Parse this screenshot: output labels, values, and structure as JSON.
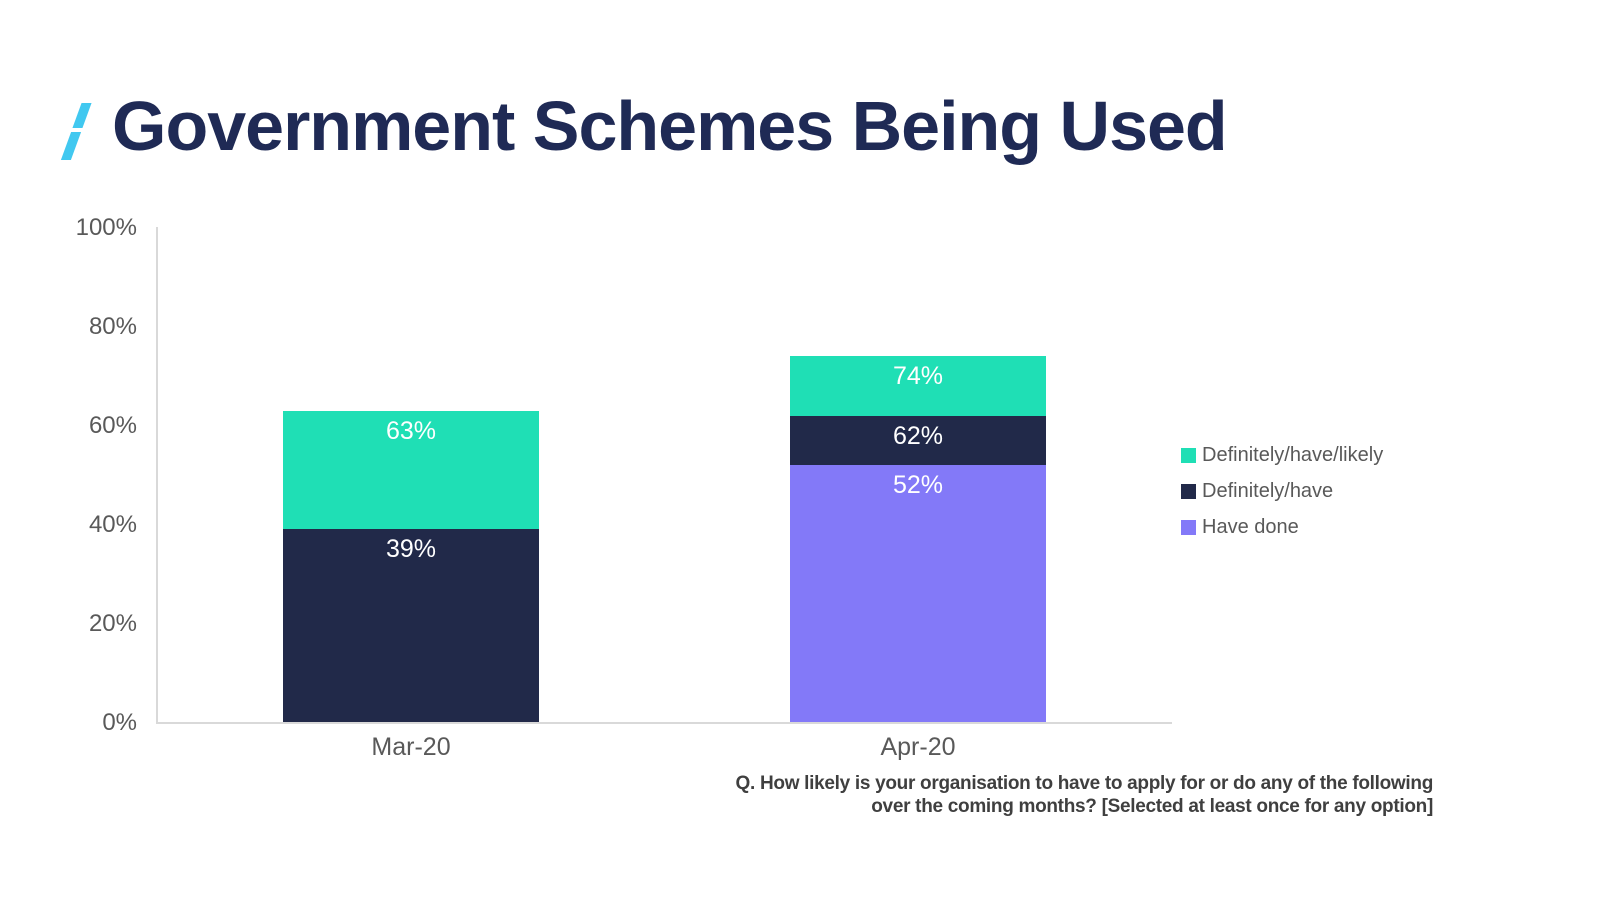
{
  "title": {
    "slash": "/",
    "text": "Government Schemes Being Used"
  },
  "colors": {
    "title_navy": "#1F2A55",
    "slash_cyan": "#41C8F0",
    "teal": "#1FDFB5",
    "navy": "#212949",
    "purple": "#8379F8",
    "axis_gray": "#D9D9D9",
    "label_gray": "#595959",
    "footnote_gray": "#3F3F3F",
    "bar_value_text": "#ffffff"
  },
  "chart_data": {
    "type": "bar",
    "subtype": "overlapped-percentage-columns",
    "title": "Government Schemes Being Used",
    "categories": [
      "Mar-20",
      "Apr-20"
    ],
    "series": [
      {
        "name": "Definitely/have/likely",
        "color": "#1FDFB5",
        "values": [
          63,
          74
        ]
      },
      {
        "name": "Definitely/have",
        "color": "#212949",
        "values": [
          39,
          62
        ]
      },
      {
        "name": "Have done",
        "color": "#8379F8",
        "values": [
          null,
          52
        ]
      }
    ],
    "value_label_format": "{value}%",
    "shown_value_labels": {
      "Mar-20": [
        "63%",
        "39%"
      ],
      "Apr-20": [
        "74%",
        "62%",
        "52%"
      ]
    },
    "xlabel": "",
    "ylabel": "",
    "ylim": [
      0,
      100
    ],
    "y_ticks": [
      "100%",
      "80%",
      "60%",
      "40%",
      "20%",
      "0%"
    ],
    "grid": false,
    "legend_position": "right"
  },
  "legend": {
    "items": [
      {
        "label": "Definitely/have/likely",
        "color": "#1FDFB5"
      },
      {
        "label": "Definitely/have",
        "color": "#212949"
      },
      {
        "label": "Have done",
        "color": "#8379F8"
      }
    ]
  },
  "footnote": {
    "line1": "Q. How likely is your organisation to have to apply for or do any of the following",
    "line2": "over the coming months? [Selected at least once for any option]"
  }
}
